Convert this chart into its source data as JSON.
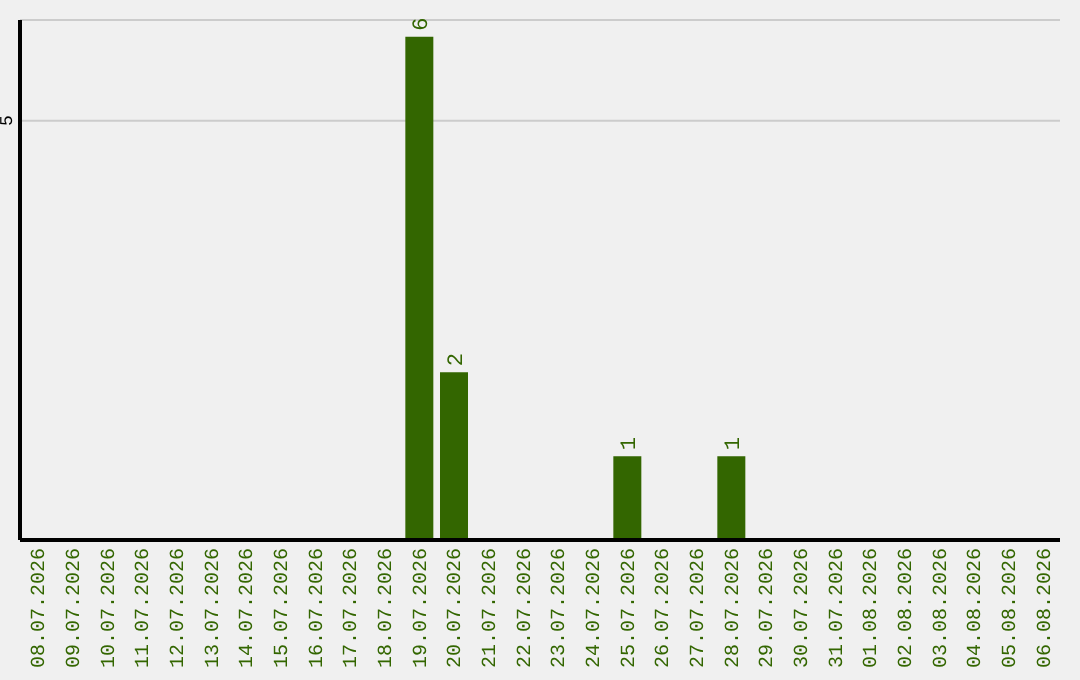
{
  "chart_data": {
    "type": "bar",
    "categories": [
      "08.07.2026",
      "09.07.2026",
      "10.07.2026",
      "11.07.2026",
      "12.07.2026",
      "13.07.2026",
      "14.07.2026",
      "15.07.2026",
      "16.07.2026",
      "17.07.2026",
      "18.07.2026",
      "19.07.2026",
      "20.07.2026",
      "21.07.2026",
      "22.07.2026",
      "23.07.2026",
      "24.07.2026",
      "25.07.2026",
      "26.07.2026",
      "27.07.2026",
      "28.07.2026",
      "29.07.2026",
      "30.07.2026",
      "31.07.2026",
      "01.08.2026",
      "02.08.2026",
      "03.08.2026",
      "04.08.2026",
      "05.08.2026",
      "06.08.2026"
    ],
    "values": [
      0,
      0,
      0,
      0,
      0,
      0,
      0,
      0,
      0,
      0,
      0,
      6,
      2,
      0,
      0,
      0,
      0,
      1,
      0,
      0,
      1,
      0,
      0,
      0,
      0,
      0,
      0,
      0,
      0,
      0
    ],
    "value_labels": [
      null,
      null,
      null,
      null,
      null,
      null,
      null,
      null,
      null,
      null,
      null,
      "6",
      "2",
      null,
      null,
      null,
      null,
      "1",
      null,
      null,
      "1",
      null,
      null,
      null,
      null,
      null,
      null,
      null,
      null,
      null
    ],
    "color": "#336600",
    "ylim": [
      0,
      6.2
    ],
    "yticks": [
      5
    ],
    "grid": "y"
  }
}
